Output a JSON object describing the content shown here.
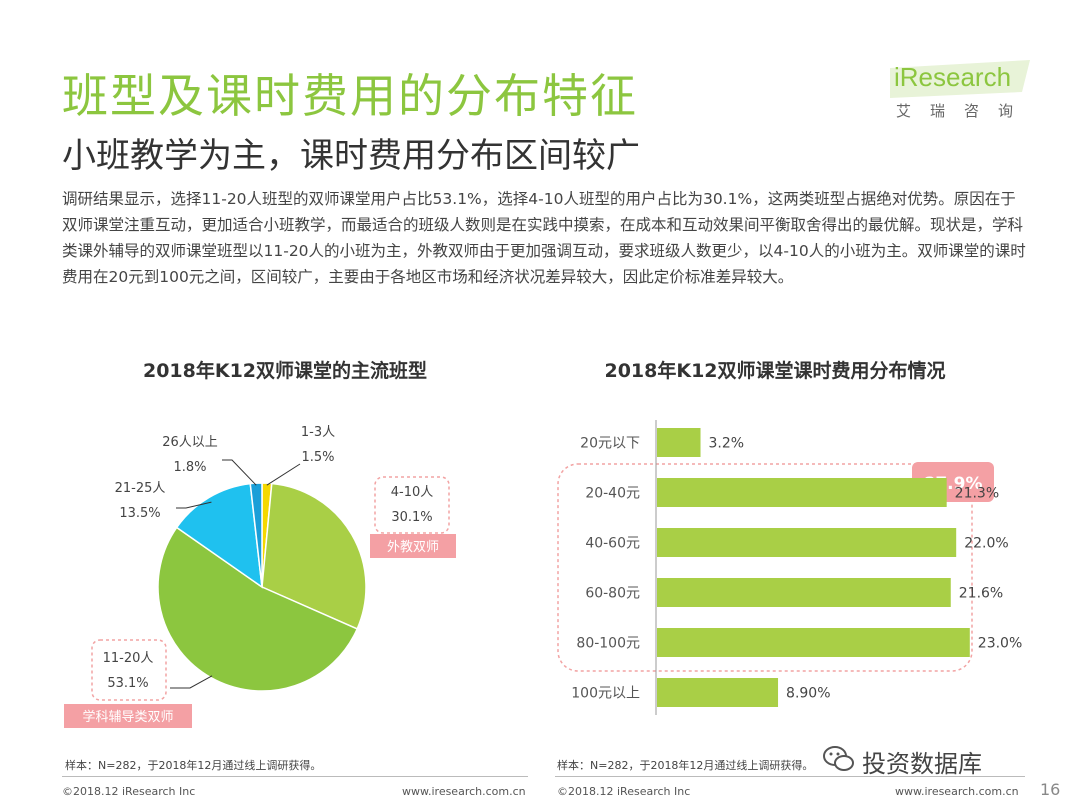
{
  "header": {
    "title": "班型及课时费用的分布特征",
    "subtitle": "小班教学为主，课时费用分布区间较广"
  },
  "logo": {
    "brand": "iResearch",
    "sub": "艾瑞咨询"
  },
  "paragraph": "调研结果显示，选择11-20人班型的双师课堂用户占比53.1%，选择4-10人班型的用户占比为30.1%，这两类班型占据绝对优势。原因在于双师课堂注重互动，更加适合小班教学，而最适合的班级人数则是在实践中摸索，在成本和互动效果间平衡取舍得出的最优解。现状是，学科类课外辅导的双师课堂班型以11-20人的小班为主，外教双师由于更加强调互动，要求班级人数更少，以4-10人的小班为主。双师课堂的课时费用在20元到100元之间，区间较广，主要由于各地区市场和经济状况差异较大，因此定价标准差异较大。",
  "chart_data": [
    {
      "type": "pie",
      "title": "2018年K12双师课堂的主流班型",
      "categories": [
        "1-3人",
        "4-10人",
        "11-20人",
        "21-25人",
        "26人以上"
      ],
      "values": [
        1.5,
        30.1,
        53.1,
        13.5,
        1.8
      ],
      "value_labels": [
        "1.5%",
        "30.1%",
        "53.1%",
        "13.5%",
        "1.8%"
      ],
      "colors": [
        "#f5d800",
        "#a9cf46",
        "#8cc63f",
        "#1fc1ef",
        "#1a9fd8"
      ],
      "annotations": [
        {
          "category": "4-10人",
          "text": "外教双师"
        },
        {
          "category": "11-20人",
          "text": "学科辅导类双师"
        }
      ]
    },
    {
      "type": "bar",
      "orientation": "horizontal",
      "title": "2018年K12双师课堂课时费用分布情况",
      "categories": [
        "20元以下",
        "20-40元",
        "40-60元",
        "60-80元",
        "80-100元",
        "100元以上"
      ],
      "values": [
        3.2,
        21.3,
        22.0,
        21.6,
        23.0,
        8.9
      ],
      "value_labels": [
        "3.2%",
        "21.3%",
        "22.0%",
        "21.6%",
        "23.0%",
        "8.90%"
      ],
      "xlim": [
        0,
        25
      ],
      "color": "#a9cf46",
      "annotations": [
        {
          "range": [
            "20-40元",
            "80-100元"
          ],
          "text": "87.9%"
        }
      ]
    }
  ],
  "footer": {
    "note": "样本：N=282，于2018年12月通过线上调研获得。",
    "copyright": "©2018.12 iResearch Inc",
    "site": "www.iresearch.com.cn",
    "watermark": "投资数据库",
    "page": "16"
  }
}
